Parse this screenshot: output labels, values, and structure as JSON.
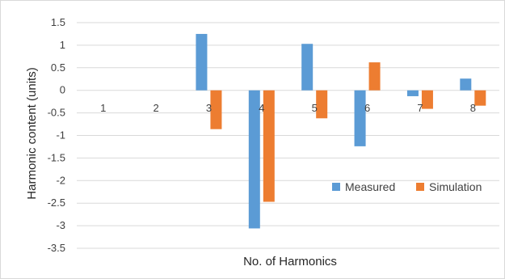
{
  "chart_data": {
    "type": "bar",
    "title": "",
    "xlabel": "No. of Harmonics",
    "ylabel": "Harmonic content (units)",
    "categories": [
      "1",
      "2",
      "3",
      "4",
      "5",
      "6",
      "7",
      "8"
    ],
    "series": [
      {
        "name": "Measured",
        "color": "#5b9bd5",
        "values": [
          0,
          0,
          1.25,
          -3.06,
          1.03,
          -1.24,
          -0.13,
          0.26
        ]
      },
      {
        "name": "Simulation",
        "color": "#ed7d31",
        "values": [
          0,
          0,
          -0.86,
          -2.47,
          -0.62,
          0.62,
          -0.41,
          -0.34
        ]
      }
    ],
    "ylim": [
      -3.5,
      1.5
    ],
    "yticks": [
      "1.5",
      "1",
      "0.5",
      "0",
      "-0.5",
      "-1",
      "-1.5",
      "-2",
      "-2.5",
      "-3",
      "-3.5"
    ],
    "ytick_values": [
      1.5,
      1,
      0.5,
      0,
      -0.5,
      -1,
      -1.5,
      -2,
      -2.5,
      -3,
      -3.5
    ],
    "grid": true,
    "legend_position": "bottom-right inside plot"
  }
}
